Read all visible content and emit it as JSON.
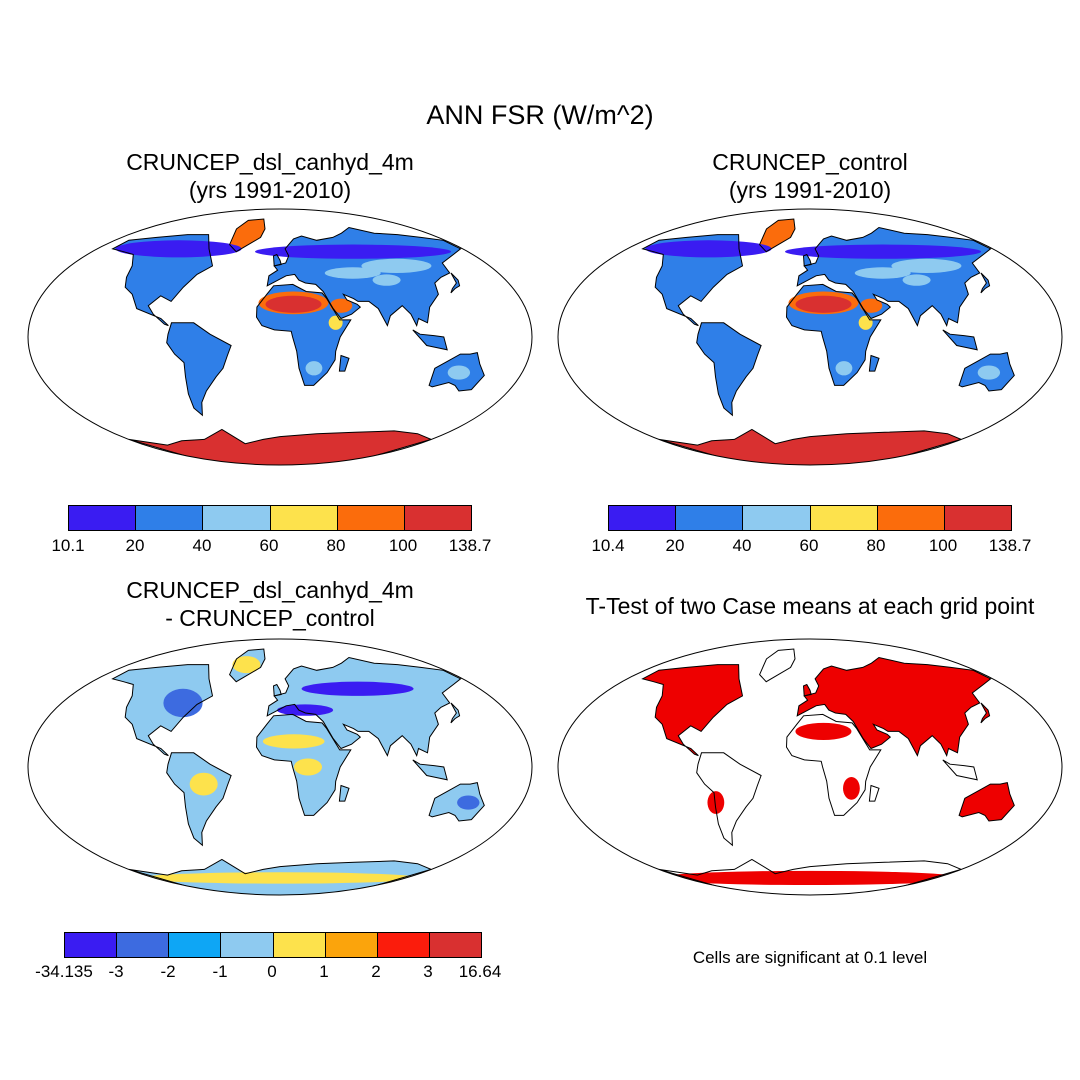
{
  "main_title": "ANN FSR (W/m^2)",
  "panels": [
    {
      "title1": "CRUNCEP_dsl_canhyd_4m",
      "title2": "(yrs 1991-2010)"
    },
    {
      "title1": "CRUNCEP_control",
      "title2": "(yrs 1991-2010)"
    },
    {
      "title1": "CRUNCEP_dsl_canhyd_4m",
      "title2": "- CRUNCEP_control"
    },
    {
      "title1": "T-Test of two Case means at each grid point",
      "title2": ""
    }
  ],
  "colorbars": [
    {
      "labels": [
        "10.1",
        "20",
        "40",
        "60",
        "80",
        "100",
        "138.7"
      ],
      "colors": [
        "#3a1cf2",
        "#2f7fe8",
        "#8ecaf0",
        "#fde24c",
        "#fb6c0c",
        "#d93030"
      ]
    },
    {
      "labels": [
        "10.4",
        "20",
        "40",
        "60",
        "80",
        "100",
        "138.7"
      ],
      "colors": [
        "#3a1cf2",
        "#2f7fe8",
        "#8ecaf0",
        "#fde24c",
        "#fb6c0c",
        "#d93030"
      ]
    },
    {
      "labels": [
        "-34.135",
        "-3",
        "-2",
        "-1",
        "0",
        "1",
        "2",
        "3",
        "16.64"
      ],
      "colors": [
        "#3a1cf2",
        "#3d6be0",
        "#0ea6f5",
        "#8ecaf0",
        "#fde24c",
        "#fba40c",
        "#fb1c0c",
        "#d93030"
      ]
    }
  ],
  "significance_color": "#ee0000",
  "note": "Cells are significant at 0.1 level"
}
